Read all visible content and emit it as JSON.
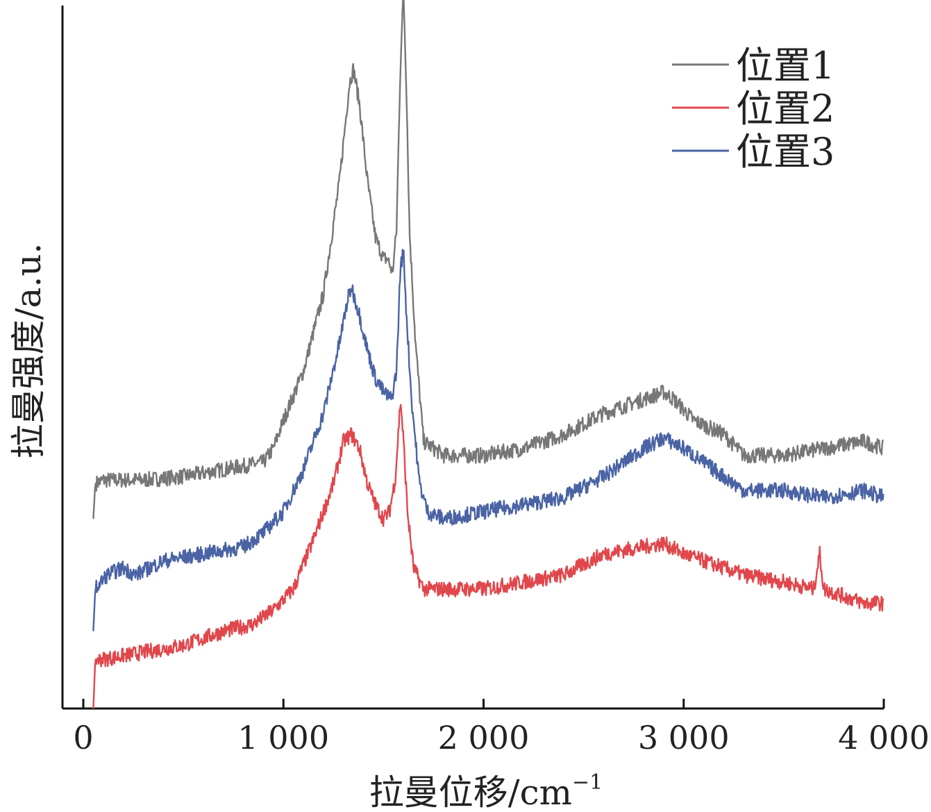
{
  "chart_data": {
    "type": "line",
    "xlabel": "拉曼位移/cm",
    "xlabel_sup": "−1",
    "ylabel": "拉曼强度/a.u.",
    "xlim": [
      -100,
      4000
    ],
    "ylim": [
      0,
      1
    ],
    "x_ticks": [
      0,
      1000,
      2000,
      3000,
      4000
    ],
    "x_tick_labels": [
      "0",
      "1 000",
      "2 000",
      "3 000",
      "4 000"
    ],
    "y_ticks_shown": false,
    "grid": false,
    "legend_position": "top-right",
    "series": [
      {
        "name": "位置1",
        "color": "#777777",
        "points": [
          [
            50,
            0.27
          ],
          [
            60,
            0.32
          ],
          [
            100,
            0.325
          ],
          [
            300,
            0.325
          ],
          [
            500,
            0.33
          ],
          [
            700,
            0.34
          ],
          [
            900,
            0.35
          ],
          [
            950,
            0.37
          ],
          [
            1000,
            0.41
          ],
          [
            1100,
            0.48
          ],
          [
            1200,
            0.59
          ],
          [
            1280,
            0.75
          ],
          [
            1330,
            0.89
          ],
          [
            1350,
            0.91
          ],
          [
            1380,
            0.86
          ],
          [
            1420,
            0.75
          ],
          [
            1460,
            0.67
          ],
          [
            1500,
            0.64
          ],
          [
            1520,
            0.64
          ],
          [
            1545,
            0.62
          ],
          [
            1565,
            0.68
          ],
          [
            1585,
            0.92
          ],
          [
            1600,
            1.02
          ],
          [
            1615,
            0.88
          ],
          [
            1630,
            0.68
          ],
          [
            1660,
            0.52
          ],
          [
            1700,
            0.38
          ],
          [
            1800,
            0.36
          ],
          [
            2000,
            0.36
          ],
          [
            2200,
            0.37
          ],
          [
            2400,
            0.39
          ],
          [
            2600,
            0.42
          ],
          [
            2800,
            0.44
          ],
          [
            2900,
            0.45
          ],
          [
            2950,
            0.44
          ],
          [
            3050,
            0.41
          ],
          [
            3200,
            0.39
          ],
          [
            3300,
            0.36
          ],
          [
            3500,
            0.36
          ],
          [
            3700,
            0.37
          ],
          [
            3900,
            0.38
          ],
          [
            4000,
            0.37
          ]
        ]
      },
      {
        "name": "位置2",
        "color": "#e0474c",
        "points": [
          [
            50,
            0.0
          ],
          [
            60,
            0.07
          ],
          [
            100,
            0.07
          ],
          [
            300,
            0.08
          ],
          [
            500,
            0.09
          ],
          [
            700,
            0.11
          ],
          [
            850,
            0.12
          ],
          [
            950,
            0.14
          ],
          [
            1050,
            0.17
          ],
          [
            1150,
            0.24
          ],
          [
            1250,
            0.32
          ],
          [
            1300,
            0.38
          ],
          [
            1340,
            0.39
          ],
          [
            1380,
            0.37
          ],
          [
            1420,
            0.32
          ],
          [
            1460,
            0.29
          ],
          [
            1500,
            0.27
          ],
          [
            1530,
            0.28
          ],
          [
            1560,
            0.33
          ],
          [
            1585,
            0.44
          ],
          [
            1600,
            0.38
          ],
          [
            1620,
            0.28
          ],
          [
            1650,
            0.2
          ],
          [
            1700,
            0.17
          ],
          [
            1800,
            0.17
          ],
          [
            2000,
            0.17
          ],
          [
            2200,
            0.18
          ],
          [
            2400,
            0.19
          ],
          [
            2600,
            0.22
          ],
          [
            2800,
            0.23
          ],
          [
            2900,
            0.235
          ],
          [
            3000,
            0.22
          ],
          [
            3100,
            0.21
          ],
          [
            3200,
            0.2
          ],
          [
            3300,
            0.19
          ],
          [
            3500,
            0.18
          ],
          [
            3650,
            0.17
          ],
          [
            3680,
            0.22
          ],
          [
            3700,
            0.17
          ],
          [
            3800,
            0.16
          ],
          [
            3900,
            0.15
          ],
          [
            4000,
            0.15
          ]
        ]
      },
      {
        "name": "位置3",
        "color": "#4a63a4",
        "points": [
          [
            50,
            0.11
          ],
          [
            60,
            0.17
          ],
          [
            120,
            0.19
          ],
          [
            200,
            0.2
          ],
          [
            260,
            0.19
          ],
          [
            400,
            0.21
          ],
          [
            600,
            0.22
          ],
          [
            800,
            0.23
          ],
          [
            900,
            0.25
          ],
          [
            1000,
            0.28
          ],
          [
            1100,
            0.34
          ],
          [
            1200,
            0.42
          ],
          [
            1280,
            0.52
          ],
          [
            1320,
            0.58
          ],
          [
            1340,
            0.6
          ],
          [
            1380,
            0.56
          ],
          [
            1420,
            0.51
          ],
          [
            1460,
            0.47
          ],
          [
            1500,
            0.45
          ],
          [
            1540,
            0.44
          ],
          [
            1565,
            0.48
          ],
          [
            1585,
            0.63
          ],
          [
            1600,
            0.65
          ],
          [
            1615,
            0.56
          ],
          [
            1640,
            0.44
          ],
          [
            1680,
            0.32
          ],
          [
            1720,
            0.28
          ],
          [
            1800,
            0.27
          ],
          [
            2000,
            0.28
          ],
          [
            2200,
            0.29
          ],
          [
            2400,
            0.3
          ],
          [
            2600,
            0.33
          ],
          [
            2800,
            0.37
          ],
          [
            2900,
            0.385
          ],
          [
            3000,
            0.37
          ],
          [
            3100,
            0.35
          ],
          [
            3300,
            0.31
          ],
          [
            3500,
            0.31
          ],
          [
            3700,
            0.3
          ],
          [
            3900,
            0.31
          ],
          [
            4000,
            0.3
          ]
        ]
      }
    ]
  }
}
